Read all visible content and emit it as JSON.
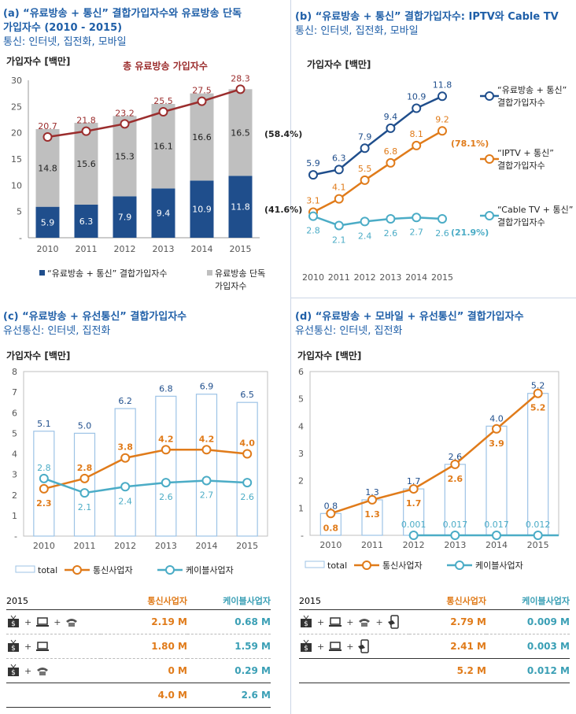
{
  "panel_a": {
    "title1": "(a) “유료방송 + 통신” 결합가입자수와 유료방송 단독",
    "title2": "가입자수 (2010 - 2015)",
    "subtitle": "통신: 인터넷, 집전화, 모바일",
    "legend_bundle": "“유료방송 + 통신” 결합가입자수",
    "legend_standalone1": "유료방송 단독",
    "legend_standalone2": "가입자수"
  },
  "panel_b": {
    "title": "(b) “유료방송 + 통신” 결합가입자수: IPTV와 Cable TV",
    "subtitle": "통신: 인터넷, 집전화, 모바일",
    "legend_total1": "“유료방송 + 통신”",
    "legend_total2": "결합가입자수",
    "legend_iptv1": "“IPTV + 통신”",
    "legend_iptv2": "결합가입자수",
    "legend_cable1": "“Cable TV + 통신”",
    "legend_cable2": "결합가입자수"
  },
  "panel_c": {
    "title": "(c) “유료방송 + 유선통신” 결합가입자수",
    "subtitle": "유선통신: 인터넷, 집전화",
    "legend_total": "total",
    "legend_telco": "통신사업자",
    "legend_cable": "케이블사업자",
    "table": {
      "year": "2015",
      "col1": "통신사업자",
      "col2": "케이블사업자",
      "rows": [
        {
          "icons": [
            "tv-icon",
            "laptop-icon",
            "phone-icon"
          ],
          "v1": "2.19 M",
          "v2": "0.68 M"
        },
        {
          "icons": [
            "tv-icon",
            "laptop-icon"
          ],
          "v1": "1.80 M",
          "v2": "1.59 M"
        },
        {
          "icons": [
            "tv-icon",
            "phone-icon"
          ],
          "v1": "0 M",
          "v2": "0.29 M"
        },
        {
          "icons": [],
          "v1": "4.0 M",
          "v2": "2.6 M"
        }
      ]
    }
  },
  "panel_d": {
    "title": "(d) “유료방송 + 모바일 + 유선통신” 결합가입자수",
    "subtitle": "유선통신: 인터넷, 집전화",
    "legend_total": "total",
    "legend_telco": "통신사업자",
    "legend_cable": "케이블사업자",
    "table": {
      "year": "2015",
      "col1": "통신사업자",
      "col2": "케이블사업자",
      "rows": [
        {
          "icons": [
            "tv-icon",
            "laptop-icon",
            "phone-icon",
            "mobile-icon"
          ],
          "v1": "2.79 M",
          "v2": "0.009 M"
        },
        {
          "icons": [
            "tv-icon",
            "laptop-icon",
            "mobile-icon"
          ],
          "v1": "2.41 M",
          "v2": "0.003 M"
        },
        {
          "icons": [],
          "v1": "5.2 M",
          "v2": "0.012 M"
        }
      ]
    }
  },
  "colors": {
    "navy": "#1f4e8c",
    "grey": "#bfbfbf",
    "darkred": "#9b2d2d",
    "orange": "#e07b1a",
    "teal": "#4bacc6",
    "bar_outline": "#9dc3e6",
    "title_blue": "#1f5fa8"
  },
  "chart_data": [
    {
      "id": "a",
      "type": "bar",
      "stacked": true,
      "categories": [
        "2010",
        "2011",
        "2012",
        "2013",
        "2014",
        "2015"
      ],
      "ylabel": "가입자수 [백만]",
      "ylim": [
        0,
        30
      ],
      "yticks": [
        "-",
        "5",
        "10",
        "15",
        "20",
        "25",
        "30"
      ],
      "series": [
        {
          "name": "“유료방송 + 통신” 결합가입자수",
          "values": [
            5.9,
            6.3,
            7.9,
            9.4,
            10.9,
            11.8
          ]
        },
        {
          "name": "유료방송 단독 가입자수",
          "values": [
            14.8,
            15.6,
            15.3,
            16.1,
            16.6,
            16.5
          ]
        }
      ],
      "line": {
        "name": "총 유료방송 가입자수",
        "values": [
          20.7,
          21.8,
          23.2,
          25.5,
          27.5,
          28.3
        ]
      },
      "annotations": [
        "(58.4%)",
        "(41.6%)"
      ],
      "grid": false
    },
    {
      "id": "b",
      "type": "line",
      "categories": [
        "2010",
        "2011",
        "2012",
        "2013",
        "2014",
        "2015"
      ],
      "ylabel": "가입자수 [백만]",
      "ylim": [
        0,
        13
      ],
      "series": [
        {
          "name": "“유료방송 + 통신” 결합가입자수",
          "values": [
            5.9,
            6.3,
            7.9,
            9.4,
            10.9,
            11.8
          ]
        },
        {
          "name": "“IPTV + 통신” 결합가입자수",
          "values": [
            3.1,
            4.1,
            5.5,
            6.8,
            8.1,
            9.2
          ]
        },
        {
          "name": "“Cable TV + 통신” 결합가입자수",
          "values": [
            2.8,
            2.1,
            2.4,
            2.6,
            2.7,
            2.6
          ]
        }
      ],
      "annotations": [
        "(78.1%)",
        "(21.9%)"
      ],
      "legend": "right",
      "grid": false
    },
    {
      "id": "c",
      "type": "bar",
      "categories": [
        "2010",
        "2011",
        "2012",
        "2013",
        "2014",
        "2015"
      ],
      "ylabel": "가입자수 [백만]",
      "ylim": [
        0,
        8
      ],
      "yticks": [
        "-",
        "1",
        "2",
        "3",
        "4",
        "5",
        "6",
        "7",
        "8"
      ],
      "series": [
        {
          "name": "total",
          "kind": "bar",
          "values": [
            5.1,
            5.0,
            6.2,
            6.8,
            6.9,
            6.5
          ]
        },
        {
          "name": "통신사업자",
          "kind": "line",
          "values": [
            2.3,
            2.8,
            3.8,
            4.2,
            4.2,
            4.0
          ]
        },
        {
          "name": "케이블사업자",
          "kind": "line",
          "values": [
            2.8,
            2.1,
            2.4,
            2.6,
            2.7,
            2.6
          ]
        }
      ],
      "legend": "bottom",
      "grid": false
    },
    {
      "id": "d",
      "type": "bar",
      "categories": [
        "2010",
        "2011",
        "2012",
        "2013",
        "2014",
        "2015"
      ],
      "ylabel": "가입자수 [백만]",
      "ylim": [
        0,
        6
      ],
      "yticks": [
        "-",
        "1",
        "2",
        "3",
        "4",
        "5",
        "6"
      ],
      "series": [
        {
          "name": "total",
          "kind": "bar",
          "values": [
            0.8,
            1.3,
            1.7,
            2.6,
            4.0,
            5.2
          ]
        },
        {
          "name": "통신사업자",
          "kind": "line",
          "values": [
            0.8,
            1.3,
            1.7,
            2.6,
            3.9,
            5.2
          ]
        },
        {
          "name": "케이블사업자",
          "kind": "line",
          "values": [
            null,
            null,
            0.001,
            0.017,
            0.017,
            0.012
          ],
          "labels": [
            "",
            "",
            "0.001",
            "0.017",
            "0.017",
            "0.012"
          ]
        }
      ],
      "legend": "bottom",
      "grid": false
    }
  ]
}
